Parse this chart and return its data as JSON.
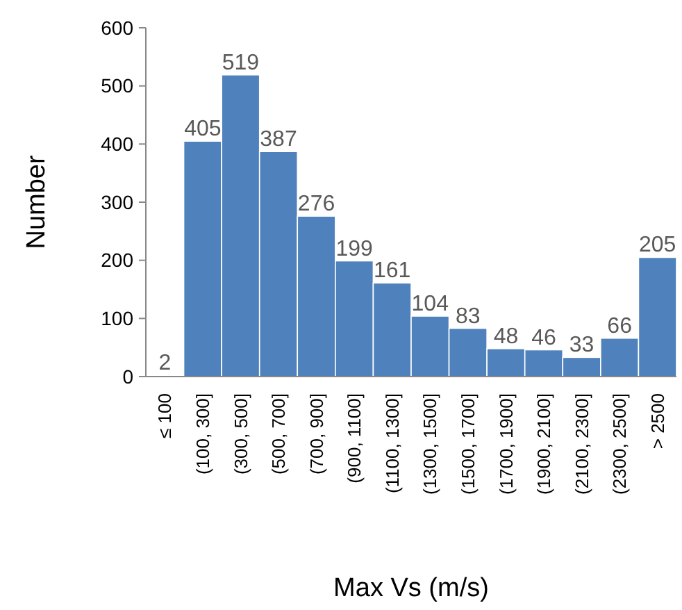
{
  "chart_data": {
    "type": "bar",
    "xlabel": "Max Vs (m/s)",
    "ylabel": "Number",
    "categories": [
      "≤ 100",
      "(100, 300]",
      "(300, 500]",
      "(500, 700]",
      "(700, 900]",
      "(900, 1100]",
      "(1100, 1300]",
      "(1300, 1500]",
      "(1500, 1700]",
      "(1700, 1900]",
      "(1900, 2100]",
      "(2100, 2300]",
      "(2300, 2500]",
      "> 2500"
    ],
    "values": [
      2,
      405,
      519,
      387,
      276,
      199,
      161,
      104,
      83,
      48,
      46,
      33,
      66,
      205
    ],
    "color": "#4f81bd",
    "ylim": [
      0,
      600
    ],
    "yticks": [
      0,
      100,
      200,
      300,
      400,
      500,
      600
    ],
    "grid": false,
    "data_labels": true
  }
}
